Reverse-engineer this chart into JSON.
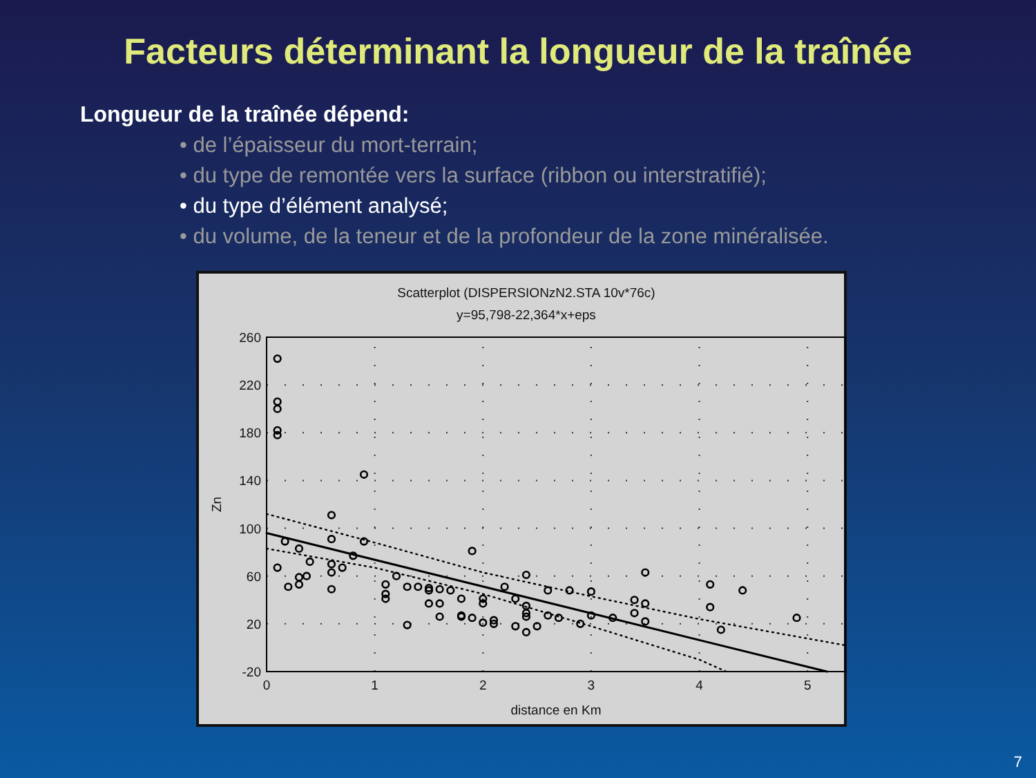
{
  "chart_data": {
    "type": "scatter",
    "title": "Facteurs déterminant la longueur de la traînée",
    "subtitle": "Scatterplot (DISPERSIONzN2.STA 10v*76c)",
    "xlabel": "distance en Km",
    "ylabel": "Zn",
    "annotations": [
      "y=95,798-22,364*x+eps",
      "Longueur de la traînée dépend:",
      "• de l’épaisseur du mort-terrain;",
      "• du type de remontée vers la surface (ribbon ou interstratifié);",
      "• du type d’élément analysé;",
      "• du volume, de la teneur et de la profondeur de la zone minéralisée.",
      "7"
    ],
    "xlim": [
      0,
      5.35
    ],
    "xticks": [
      0,
      1,
      2,
      3,
      4,
      5
    ],
    "ylim": [
      -20,
      260
    ],
    "yticks": [
      -20,
      20,
      60,
      100,
      140,
      180,
      220,
      260
    ],
    "grid": true,
    "series": [
      {
        "marker": "circle",
        "color": "#000000",
        "x": [
          0.1,
          0.1,
          0.1,
          0.1,
          0.1,
          0.9,
          0.6,
          0.6,
          0.9,
          0.17,
          0.3,
          0.4,
          0.1,
          0.6,
          0.7,
          0.8,
          0.3,
          0.3,
          0.37,
          0.2,
          0.6,
          0.6,
          1.1,
          1.1,
          1.1,
          1.2,
          1.3,
          1.3,
          1.4,
          1.5,
          1.5,
          1.5,
          1.6,
          1.6,
          1.6,
          1.7,
          1.8,
          1.8,
          1.8,
          1.9,
          1.9,
          2.0,
          2.0,
          2.0,
          2.1,
          2.1,
          2.2,
          2.3,
          2.3,
          2.4,
          2.4,
          2.4,
          2.4,
          2.4,
          2.5,
          2.6,
          2.6,
          2.7,
          2.8,
          2.9,
          3.0,
          3.0,
          3.2,
          3.4,
          3.4,
          3.5,
          3.5,
          3.5,
          4.1,
          4.1,
          4.2,
          4.4,
          4.9
        ],
        "values": [
          242,
          206,
          200,
          182,
          178,
          145,
          111,
          91,
          89,
          89,
          83,
          72,
          67,
          70,
          67,
          77,
          59,
          53,
          60,
          51,
          63,
          49,
          53,
          45,
          41,
          60,
          51,
          19,
          51,
          50,
          48,
          37,
          49,
          37,
          26,
          48,
          41,
          27,
          26,
          81,
          25,
          41,
          37,
          21,
          23,
          20,
          51,
          41,
          18,
          61,
          35,
          29,
          26,
          13,
          18,
          48,
          27,
          25,
          48,
          20,
          47,
          27,
          25,
          40,
          29,
          63,
          37,
          22,
          53,
          34,
          15,
          48,
          25
        ]
      },
      {
        "type": "line",
        "line_style": "solid",
        "color": "#000000",
        "x": [
          0,
          5.18
        ],
        "values": [
          96,
          -20
        ]
      },
      {
        "type": "line",
        "line_style": "dotted",
        "color": "#000000",
        "x": [
          0,
          1,
          2,
          3,
          4,
          5.35
        ],
        "values": [
          112,
          88,
          63,
          43,
          24,
          2
        ]
      },
      {
        "type": "line",
        "line_style": "dotted",
        "color": "#000000",
        "x": [
          0,
          1,
          2,
          3,
          4,
          4.25
        ],
        "values": [
          83,
          67,
          45,
          18,
          -10,
          -20
        ]
      }
    ]
  }
}
